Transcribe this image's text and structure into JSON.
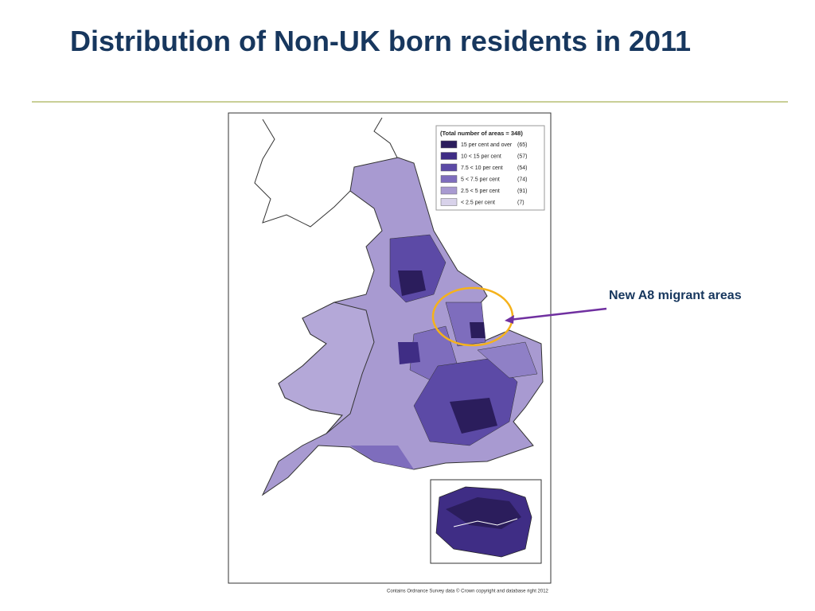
{
  "header": {
    "title": "Distribution of Non-UK born residents in 2011"
  },
  "map": {
    "legend": {
      "title": "(Total number of areas = 348)",
      "items": [
        {
          "label": "15 per cent and over",
          "count": "(65)",
          "color": "#2b1d5c"
        },
        {
          "label": "10 < 15 per cent",
          "count": "(57)",
          "color": "#3f2d85"
        },
        {
          "label": "7.5 < 10 per cent",
          "count": "(54)",
          "color": "#5c4aa6"
        },
        {
          "label": "5 < 7.5 per cent",
          "count": "(74)",
          "color": "#7e6dbd"
        },
        {
          "label": "2.5 < 5 per cent",
          "count": "(91)",
          "color": "#a89ad1"
        },
        {
          "label": "< 2.5 per cent",
          "count": "(7)",
          "color": "#d8d2ea"
        }
      ]
    },
    "credit": "Contains Ordnance Survey data © Crown copyright and database right 2012"
  },
  "annotation": "New A8 migrant areas"
}
